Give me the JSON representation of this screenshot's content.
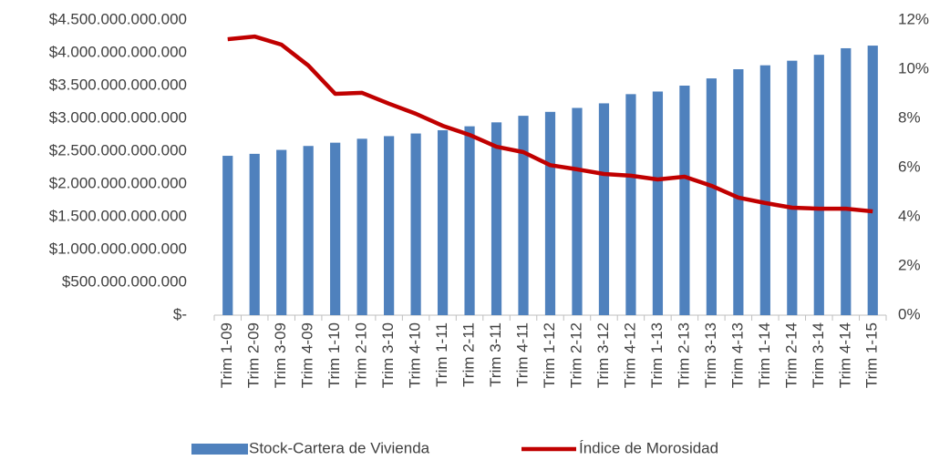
{
  "chart_data": {
    "type": "bar_line",
    "categories": [
      "Trim 1-09",
      "Trim 2-09",
      "Trim 3-09",
      "Trim 4-09",
      "Trim 1-10",
      "Trim 2-10",
      "Trim 3-10",
      "Trim 4-10",
      "Trim 1-11",
      "Trim 2-11",
      "Trim 3-11",
      "Trim 4-11",
      "Trim 1-12",
      "Trim 2-12",
      "Trim 3-12",
      "Trim 4-12",
      "Trim 1-13",
      "Trim 2-13",
      "Trim 3-13",
      "Trim 4-13",
      "Trim 1-14",
      "Trim 2-14",
      "Trim 3-14",
      "Trim 4-14",
      "Trim 1-15"
    ],
    "series": [
      {
        "name": "Stock-Cartera de Vivienda",
        "color": "#4f81bd",
        "kind": "bar",
        "values": [
          2430000000000,
          2460000000000,
          2520000000000,
          2580000000000,
          2630000000000,
          2690000000000,
          2730000000000,
          2770000000000,
          2820000000000,
          2880000000000,
          2940000000000,
          3040000000000,
          3100000000000,
          3160000000000,
          3230000000000,
          3370000000000,
          3410000000000,
          3500000000000,
          3610000000000,
          3750000000000,
          3810000000000,
          3880000000000,
          3970000000000,
          4070000000000,
          4110000000000
        ]
      },
      {
        "name": "Índice de Morosidad",
        "color": "#c00000",
        "kind": "line",
        "axis": "y2",
        "values": [
          11.22,
          11.33,
          11.0,
          10.15,
          9.0,
          9.04,
          8.6,
          8.19,
          7.7,
          7.33,
          6.85,
          6.63,
          6.1,
          5.93,
          5.74,
          5.67,
          5.52,
          5.63,
          5.26,
          4.78,
          4.56,
          4.37,
          4.33,
          4.33,
          4.22
        ]
      }
    ],
    "ylim": [
      0,
      4500000000000
    ],
    "yticks": [
      {
        "value": 0,
        "label": "$-"
      },
      {
        "value": 500000000000,
        "label": "$500.000.000.000"
      },
      {
        "value": 1000000000000,
        "label": "$1.000.000.000.000"
      },
      {
        "value": 1500000000000,
        "label": "$1.500.000.000.000"
      },
      {
        "value": 2000000000000,
        "label": "$2.000.000.000.000"
      },
      {
        "value": 2500000000000,
        "label": "$2.500.000.000.000"
      },
      {
        "value": 3000000000000,
        "label": "$3.000.000.000.000"
      },
      {
        "value": 3500000000000,
        "label": "$3.500.000.000.000"
      },
      {
        "value": 4000000000000,
        "label": "$4.000.000.000.000"
      },
      {
        "value": 4500000000000,
        "label": "$4.500.000.000.000"
      }
    ],
    "y2lim": [
      0,
      12
    ],
    "y2ticks": [
      {
        "value": 0,
        "label": "0%"
      },
      {
        "value": 2,
        "label": "2%"
      },
      {
        "value": 4,
        "label": "4%"
      },
      {
        "value": 6,
        "label": "6%"
      },
      {
        "value": 8,
        "label": "8%"
      },
      {
        "value": 10,
        "label": "10%"
      },
      {
        "value": 12,
        "label": "12%"
      }
    ],
    "grid": false,
    "legend": "bottom"
  }
}
